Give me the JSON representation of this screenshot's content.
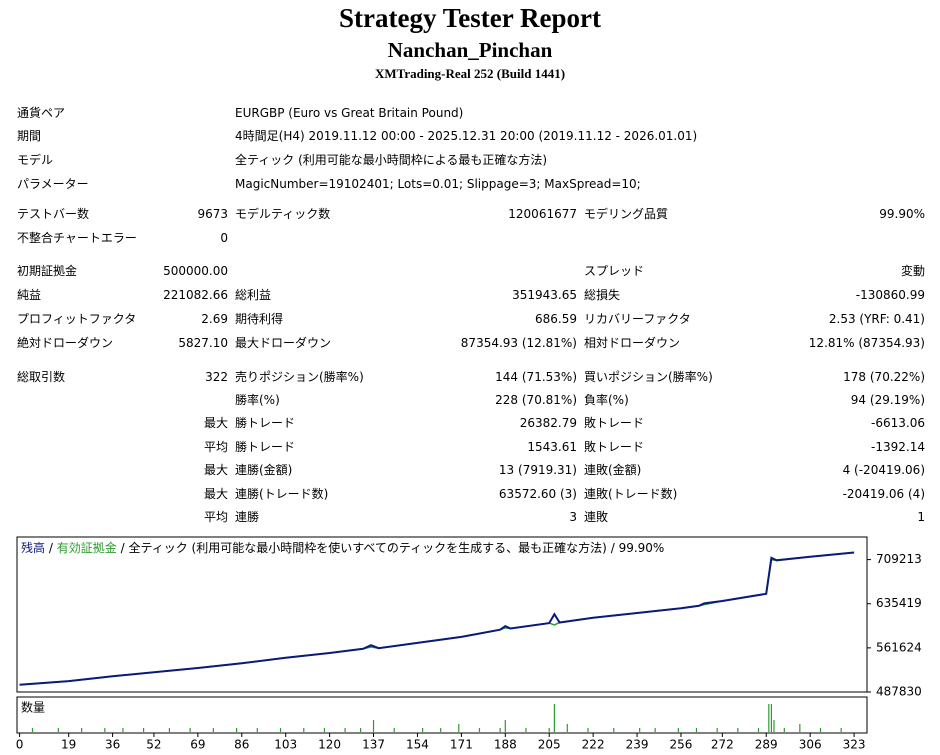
{
  "header": {
    "title": "Strategy Tester Report",
    "name": "Nanchan_Pinchan",
    "build": "XMTrading-Real 252 (Build 1441)"
  },
  "table": {
    "rows": [
      [
        "通貨ペア",
        null,
        "EURGBP (Euro vs Great Britain Pound)",
        null,
        null,
        null
      ],
      [
        "期間",
        null,
        "4時間足(H4) 2019.11.12 00:00 - 2025.12.31 20:00 (2019.11.12 - 2026.01.01)",
        null,
        null,
        null
      ],
      [
        "モデル",
        null,
        "全ティック (利用可能な最小時間枠による最も正確な方法)",
        null,
        null,
        null
      ],
      [
        "パラメーター",
        null,
        "MagicNumber=19102401; Lots=0.01; Slippage=3; MaxSpread=10;",
        null,
        null,
        null
      ],
      [
        "テストバー数",
        "9673",
        "モデルティック数",
        "120061677",
        "モデリング品質",
        "99.90%"
      ],
      [
        "不整合チャートエラー",
        "0",
        null,
        null,
        null,
        null
      ],
      [
        "初期証拠金",
        "500000.00",
        null,
        null,
        "スプレッド",
        "変動"
      ],
      [
        "純益",
        "221082.66",
        "総利益",
        "351943.65",
        "総損失",
        "-130860.99"
      ],
      [
        "プロフィットファクタ",
        "2.69",
        "期待利得",
        "686.59",
        "リカバリーファクタ",
        "2.53 (YRF: 0.41)"
      ],
      [
        "絶対ドローダウン",
        "5827.10",
        "最大ドローダウン",
        "87354.93 (12.81%)",
        "相対ドローダウン",
        "12.81% (87354.93)"
      ],
      [
        "総取引数",
        "322",
        "売りポジション(勝率%)",
        "144 (71.53%)",
        "買いポジション(勝率%)",
        "178 (70.22%)"
      ],
      [
        null,
        null,
        "勝率(%)",
        "228 (70.81%)",
        "負率(%)",
        "94 (29.19%)"
      ],
      [
        null,
        "最大",
        "勝トレード",
        "26382.79",
        "敗トレード",
        "-6613.06"
      ],
      [
        null,
        "平均",
        "勝トレード",
        "1543.61",
        "敗トレード",
        "-1392.14"
      ],
      [
        null,
        "最大",
        "連勝(金額)",
        "13 (7919.31)",
        "連敗(金額)",
        "4 (-20419.06)"
      ],
      [
        null,
        "最大",
        "連勝(トレード数)",
        "63572.60 (3)",
        "連敗(トレード数)",
        "-20419.06 (4)"
      ],
      [
        null,
        "平均",
        "連勝",
        "3",
        "連敗",
        "1"
      ]
    ]
  },
  "chart_data": {
    "type": "line",
    "separator": "/",
    "caption": "全ティック (利用可能な最小時間枠を使いすべてのティックを生成する、最も正確な方法)",
    "quality": "99.90%",
    "x": [
      0,
      19,
      36,
      52,
      69,
      86,
      103,
      120,
      133,
      136,
      139,
      154,
      171,
      186,
      188,
      190,
      205,
      207,
      209,
      222,
      239,
      256,
      263,
      265,
      272,
      289,
      291,
      293,
      306,
      323
    ],
    "series": [
      {
        "name": "残高",
        "color": "#0a1a7a",
        "values": [
          500000,
          506000,
          514000,
          521000,
          528000,
          536000,
          545000,
          553000,
          560000,
          566000,
          561000,
          570000,
          580000,
          592000,
          598000,
          594000,
          603000,
          618000,
          604000,
          612000,
          620000,
          628000,
          632000,
          636000,
          640000,
          652000,
          712000,
          708000,
          714000,
          721083
        ]
      },
      {
        "name": "有効証拠金",
        "color": "#2e9a2e",
        "values": [
          500000,
          506000,
          514000,
          521000,
          528000,
          536000,
          545000,
          553000,
          560000,
          563000,
          561000,
          570000,
          580000,
          592000,
          595000,
          594000,
          603000,
          600000,
          604000,
          612000,
          620000,
          628000,
          632000,
          634000,
          640000,
          652000,
          709000,
          708000,
          714000,
          721083
        ]
      }
    ],
    "xlim": [
      -1,
      328
    ],
    "xticks": [
      0,
      19,
      36,
      52,
      69,
      86,
      103,
      120,
      137,
      154,
      171,
      188,
      205,
      222,
      239,
      256,
      272,
      289,
      306,
      323
    ],
    "ylim": [
      487830,
      747000
    ],
    "yticks": [
      487830,
      561624,
      635419,
      709213
    ],
    "volume": {
      "name": "数量",
      "color": "#2e9a2e",
      "x": [
        5,
        15,
        24,
        33,
        40,
        48,
        58,
        66,
        75,
        84,
        92,
        101,
        110,
        118,
        126,
        132,
        137,
        145,
        156,
        163,
        170,
        178,
        186,
        188,
        196,
        205,
        207,
        212,
        220,
        230,
        240,
        246,
        255,
        262,
        270,
        278,
        286,
        290,
        291,
        292,
        296,
        302,
        310,
        318
      ],
      "values": [
        1,
        1,
        1,
        1,
        1,
        1,
        1,
        1,
        1,
        1,
        1,
        1,
        1,
        1,
        1,
        1,
        3,
        1,
        1,
        1,
        2,
        1,
        1,
        3,
        1,
        1,
        7,
        2,
        1,
        1,
        1,
        1,
        1,
        1,
        1,
        1,
        1,
        7,
        7,
        3,
        1,
        2,
        1,
        1
      ],
      "ylim": [
        0,
        8
      ]
    }
  }
}
